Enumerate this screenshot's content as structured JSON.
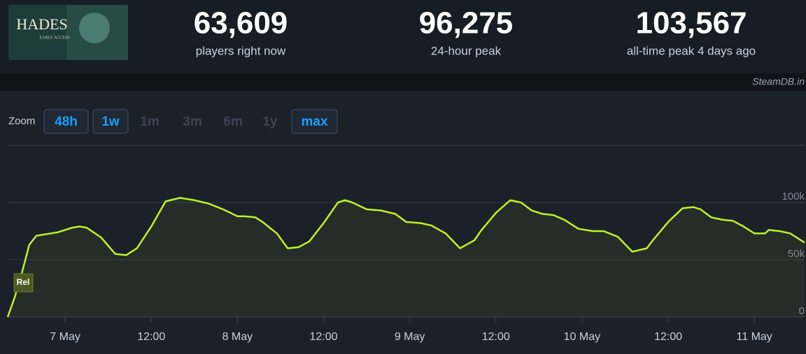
{
  "header": {
    "thumbnail": {
      "title": "HADES",
      "subtitle": "EARLY ACCESS"
    },
    "stats": [
      {
        "value": "63,609",
        "label": "players right now"
      },
      {
        "value": "96,275",
        "label": "24-hour peak"
      },
      {
        "value": "103,567",
        "label": "all-time peak 4 days ago"
      }
    ],
    "source": "SteamDB.in"
  },
  "zoom": {
    "label": "Zoom",
    "buttons": [
      "48h",
      "1w",
      "1m",
      "3m",
      "6m",
      "1y",
      "max"
    ]
  },
  "chart_data": {
    "type": "line",
    "color": "#bef227",
    "grid": true,
    "annotation": "Rel",
    "x": [
      "6 May 16:00",
      "6 May 17:00",
      "6 May 18:00",
      "6 May 19:00",
      "6 May 20:00",
      "6 May 22:00",
      "6 May 23:00",
      "7 May 01:00",
      "7 May 02:00",
      "7 May 03:00",
      "7 May 05:00",
      "7 May 07:00",
      "7 May 08:30",
      "7 May 10:00",
      "7 May 12:00",
      "7 May 14:00",
      "7 May 16:00",
      "7 May 18:00",
      "7 May 20:00",
      "7 May 22:00",
      "8 May 00:00",
      "8 May 01:00",
      "8 May 02:30",
      "8 May 03:30",
      "8 May 04:30",
      "8 May 05:30",
      "8 May 07:00",
      "8 May 08:30",
      "8 May 10:00",
      "8 May 12:00",
      "8 May 14:00",
      "8 May 15:00",
      "8 May 16:00",
      "8 May 18:00",
      "8 May 20:00",
      "8 May 22:00",
      "8 May 23:30",
      "9 May 01:30",
      "9 May 03:00",
      "9 May 05:00",
      "9 May 07:00",
      "9 May 09:00",
      "9 May 10:00",
      "9 May 12:00",
      "9 May 14:00",
      "9 May 15:30",
      "9 May 17:00",
      "9 May 18:30",
      "9 May 20:00",
      "9 May 21:30",
      "9 May 23:30",
      "10 May 01:30",
      "10 May 03:00",
      "10 May 05:00",
      "10 May 07:00",
      "10 May 09:00",
      "10 May 10:00",
      "10 May 12:00",
      "10 May 14:00",
      "10 May 15:30",
      "10 May 16:30",
      "10 May 18:00",
      "10 May 19:30",
      "10 May 21:00",
      "10 May 22:30",
      "11 May 00:00",
      "11 May 01:30",
      "11 May 02:00",
      "11 May 03:30",
      "11 May 05:00",
      "11 May 07:00"
    ],
    "values": [
      0,
      17700,
      39000,
      63000,
      71000,
      73000,
      74000,
      78000,
      79000,
      78000,
      69500,
      55000,
      54000,
      60000,
      79000,
      101000,
      104000,
      102000,
      99000,
      94000,
      88000,
      88000,
      87000,
      83000,
      78000,
      73000,
      60000,
      61000,
      66000,
      82000,
      100000,
      102000,
      100000,
      94000,
      93000,
      90000,
      83000,
      82000,
      80000,
      73000,
      60000,
      67000,
      76000,
      91000,
      102000,
      100000,
      93000,
      90000,
      89000,
      85000,
      77000,
      75000,
      75000,
      70000,
      57000,
      60000,
      68000,
      83000,
      95000,
      96000,
      94000,
      87000,
      85000,
      84000,
      79000,
      73000,
      73000,
      76000,
      75000,
      73000,
      65000
    ],
    "xlim": [
      "6 May 16:00",
      "11 May 07:00"
    ],
    "xticks": [
      {
        "value": "7 May 00:00",
        "label": "7 May"
      },
      {
        "value": "7 May 12:00",
        "label": "12:00"
      },
      {
        "value": "8 May 00:00",
        "label": "8 May"
      },
      {
        "value": "8 May 12:00",
        "label": "12:00"
      },
      {
        "value": "9 May 00:00",
        "label": "9 May"
      },
      {
        "value": "9 May 12:00",
        "label": "12:00"
      },
      {
        "value": "10 May 00:00",
        "label": "10 May"
      },
      {
        "value": "10 May 12:00",
        "label": "12:00"
      },
      {
        "value": "11 May 00:00",
        "label": "11 May"
      }
    ],
    "ylim": [
      0,
      150000
    ],
    "yticks": [
      0,
      {
        "value": 50000,
        "label": "50k"
      },
      {
        "value": 100000,
        "label": "100k"
      }
    ]
  }
}
